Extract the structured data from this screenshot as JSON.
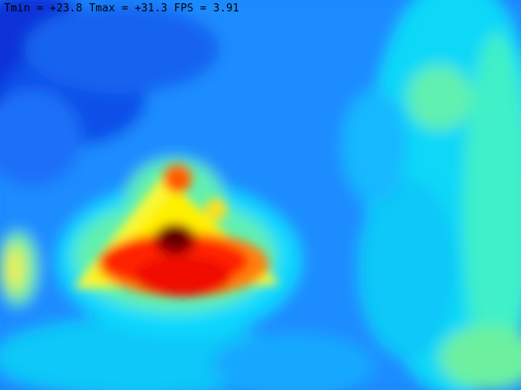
{
  "overlay": {
    "text": "Tmin = +23.8 Tmax = +31.3 FPS = 3.91"
  },
  "stats": {
    "tmin": 23.8,
    "tmax": 31.3,
    "fps": 3.91
  },
  "colormap": {
    "name": "jet",
    "low": "#0000b0",
    "mid_low": "#1a86ff",
    "mid": "#00ffff",
    "mid_high": "#ffff00",
    "high": "#ff0000",
    "peak": "#5a0000"
  }
}
